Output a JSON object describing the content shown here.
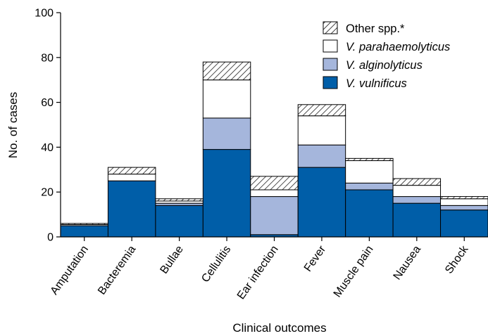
{
  "chart_data": {
    "type": "bar",
    "stacked": true,
    "categories": [
      "Amputation",
      "Bacteremia",
      "Bullae",
      "Cellulitis",
      "Ear infection",
      "Fever",
      "Muscle pain",
      "Nausea",
      "Shock"
    ],
    "series": [
      {
        "name": "V. vulnificus",
        "italic": true,
        "color": "#005ea8",
        "values": [
          5,
          25,
          14,
          39,
          1,
          31,
          21,
          15,
          12
        ]
      },
      {
        "name": "V. alginolyticus",
        "italic": true,
        "color": "#a5b6dc",
        "values": [
          0,
          0,
          1,
          14,
          17,
          10,
          3,
          3,
          2
        ]
      },
      {
        "name": "V. parahaemolyticus",
        "italic": true,
        "color": "#ffffff",
        "values": [
          0.5,
          3,
          1,
          17,
          3,
          13,
          10,
          5,
          3
        ]
      },
      {
        "name": "Other spp.*",
        "italic": false,
        "color": "hatch",
        "values": [
          0.5,
          3,
          1,
          8,
          6,
          5,
          1,
          3,
          1
        ]
      }
    ],
    "xlabel": "Clinical outcomes",
    "ylabel": "No. of cases",
    "ylim": [
      0,
      100
    ],
    "yticks": [
      0,
      20,
      40,
      60,
      80,
      100
    ],
    "legend_position": "top-right",
    "legend_order": [
      "Other spp.*",
      "V. parahaemolyticus",
      "V. alginolyticus",
      "V. vulnificus"
    ]
  }
}
